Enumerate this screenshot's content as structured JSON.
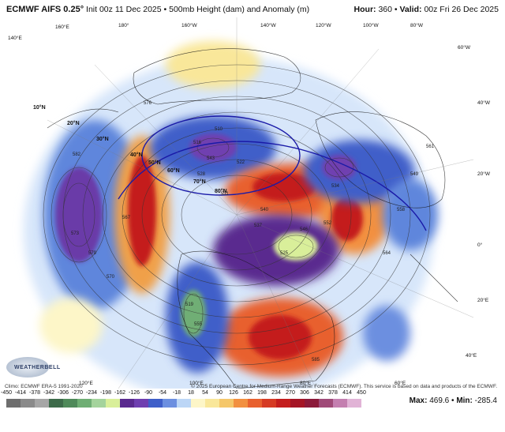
{
  "header": {
    "model": "ECMWF AIFS 0.25°",
    "init": "Init 00z 11 Dec 2025",
    "product": "500mb Height (dam) and Anomaly (m)",
    "separator": " • ",
    "hour_label": "Hour:",
    "hour_value": "360",
    "valid_label": "Valid:",
    "valid_value": "00z Fri 26 Dec 2025"
  },
  "map": {
    "lat_labels": [
      "10°N",
      "20°N",
      "30°N",
      "40°N",
      "50°N",
      "60°N",
      "70°N",
      "80°N"
    ],
    "lon_labels": [
      "140°E",
      "160°E",
      "180°",
      "160°W",
      "140°W",
      "120°W",
      "100°W",
      "80°W",
      "60°W",
      "40°W",
      "20°W",
      "0°",
      "20°E",
      "40°E",
      "60°E",
      "80°E",
      "100°E",
      "120°E"
    ],
    "contour_labels": [
      "510",
      "516",
      "522",
      "528",
      "534",
      "540",
      "546",
      "552",
      "558",
      "564",
      "570",
      "576",
      "582",
      "585",
      "579",
      "573",
      "567",
      "561",
      "555",
      "549",
      "543",
      "537",
      "531",
      "525",
      "519"
    ],
    "colors": {
      "neg_strong": "#5a2a8f",
      "neg_mid": "#3f5fc9",
      "neg_light": "#8fb8ee",
      "neutral": "#ffffff",
      "pos_light": "#f9e79a",
      "pos_mid": "#f29040",
      "pos_strong": "#c41e1e"
    }
  },
  "footer": {
    "climo": "Climo: ECMWF ERA-5 1991-2020",
    "copyright": "© 2025 European Centre for Medium-Range Weather Forecasts (ECMWF). This service is based on data and products of the ECMWF.",
    "logo_text": "WEATHERBELL",
    "max_label": "Max:",
    "max_value": "469.6",
    "min_label": "Min:",
    "min_value": "-285.4",
    "colorbar_ticks": [
      "-450",
      "-414",
      "-378",
      "-342",
      "-306",
      "-270",
      "-234",
      "-198",
      "-162",
      "-126",
      "-90",
      "-54",
      "-18",
      "18",
      "54",
      "90",
      "126",
      "162",
      "198",
      "234",
      "270",
      "306",
      "342",
      "378",
      "414",
      "450"
    ],
    "colorbar_colors": [
      "#6e6e6e",
      "#8a8a8a",
      "#a6a6a6",
      "#3d6b4a",
      "#4f8a5a",
      "#6fae74",
      "#a4d39c",
      "#d9ef9a",
      "#5a2a8f",
      "#6f3fb0",
      "#3f5fc9",
      "#6c8fe0",
      "#bcd6f6",
      "#fdf6c8",
      "#f9e79a",
      "#f5c76a",
      "#f29040",
      "#e8612f",
      "#d63b24",
      "#c41e1e",
      "#a51525",
      "#8c1a3a",
      "#a04a78",
      "#c47fb0",
      "#e1b3d6"
    ]
  }
}
